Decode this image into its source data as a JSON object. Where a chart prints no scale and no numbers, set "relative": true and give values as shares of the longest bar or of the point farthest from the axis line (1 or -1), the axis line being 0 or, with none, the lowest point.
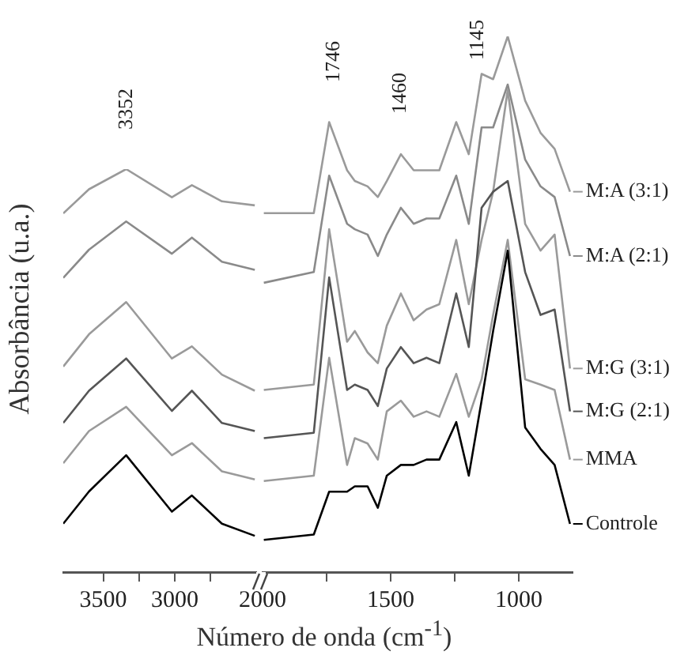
{
  "chart_data": [
    {
      "type": "line",
      "relative": true,
      "marker": "none",
      "ylabel": "Absorbância (u.a.)",
      "xlim": [
        3780,
        2430
      ],
      "xticks": [
        3500,
        {
          "value": 3250,
          "label": null
        },
        3000,
        {
          "value": 2750,
          "label": null
        }
      ],
      "x": [
        3780,
        3600,
        3340,
        3020,
        2880,
        2670,
        2440
      ],
      "annotations": [
        "3352"
      ],
      "series": [
        {
          "color": "#000000",
          "values": [
            0.12,
            0.2,
            0.29,
            0.15,
            0.19,
            0.12,
            0.09
          ]
        },
        {
          "color": "#9a9a9a",
          "values": [
            0.27,
            0.35,
            0.41,
            0.29,
            0.32,
            0.25,
            0.23
          ]
        },
        {
          "color": "#555555",
          "values": [
            0.37,
            0.45,
            0.53,
            0.4,
            0.45,
            0.37,
            0.35
          ]
        },
        {
          "color": "#9a9a9a",
          "values": [
            0.51,
            0.59,
            0.67,
            0.53,
            0.56,
            0.49,
            0.45
          ]
        },
        {
          "color": "#8a8a8a",
          "values": [
            0.73,
            0.8,
            0.87,
            0.79,
            0.83,
            0.77,
            0.75
          ]
        },
        {
          "color": "#9a9a9a",
          "values": [
            0.89,
            0.95,
            1.0,
            0.93,
            0.96,
            0.92,
            0.91
          ]
        }
      ]
    },
    {
      "type": "line",
      "relative": true,
      "marker": "none",
      "legend": "right",
      "xlabel": "Número de onda (cm$^{-1}$)",
      "xlim": [
        2000,
        790
      ],
      "xticks": [
        2000,
        {
          "value": 1750,
          "label": null
        },
        1500,
        {
          "value": 1250,
          "label": null
        },
        1000
      ],
      "x": [
        1995,
        1800,
        1740,
        1670,
        1640,
        1590,
        1550,
        1515,
        1460,
        1410,
        1360,
        1310,
        1244,
        1195,
        1145,
        1100,
        1043,
        975,
        915,
        860,
        800
      ],
      "annotations": [
        "1746",
        "1460",
        "1145"
      ],
      "series": [
        {
          "name": "Controle",
          "color": "#000000",
          "values": [
            0.06,
            0.07,
            0.15,
            0.15,
            0.16,
            0.16,
            0.12,
            0.18,
            0.2,
            0.2,
            0.21,
            0.21,
            0.28,
            0.18,
            0.32,
            0.45,
            0.6,
            0.27,
            0.23,
            0.2,
            0.09
          ]
        },
        {
          "name": "MMA",
          "color": "#9a9a9a",
          "values": [
            0.17,
            0.18,
            0.4,
            0.2,
            0.25,
            0.24,
            0.21,
            0.3,
            0.32,
            0.29,
            0.3,
            0.29,
            0.37,
            0.29,
            0.36,
            0.48,
            0.62,
            0.36,
            0.35,
            0.34,
            0.21
          ]
        },
        {
          "name": "M:G (2:1)",
          "color": "#555555",
          "values": [
            0.25,
            0.26,
            0.55,
            0.34,
            0.35,
            0.34,
            0.31,
            0.38,
            0.42,
            0.39,
            0.4,
            0.39,
            0.52,
            0.42,
            0.68,
            0.71,
            0.73,
            0.56,
            0.48,
            0.49,
            0.3
          ]
        },
        {
          "name": "M:G (3:1)",
          "color": "#9a9a9a",
          "values": [
            0.34,
            0.35,
            0.64,
            0.43,
            0.45,
            0.41,
            0.39,
            0.46,
            0.52,
            0.47,
            0.49,
            0.5,
            0.62,
            0.5,
            0.62,
            0.71,
            0.9,
            0.65,
            0.6,
            0.63,
            0.38
          ]
        },
        {
          "name": "M:A (2:1)",
          "color": "#8a8a8a",
          "values": [
            0.54,
            0.56,
            0.74,
            0.65,
            0.64,
            0.63,
            0.59,
            0.63,
            0.68,
            0.65,
            0.66,
            0.66,
            0.74,
            0.65,
            0.83,
            0.83,
            0.91,
            0.77,
            0.72,
            0.7,
            0.59
          ]
        },
        {
          "name": "M:A (3:1)",
          "color": "#9a9a9a",
          "values": [
            0.67,
            0.67,
            0.84,
            0.75,
            0.73,
            0.72,
            0.7,
            0.73,
            0.78,
            0.75,
            0.75,
            0.75,
            0.84,
            0.78,
            0.93,
            0.92,
            1.0,
            0.88,
            0.82,
            0.79,
            0.71
          ]
        }
      ]
    }
  ]
}
